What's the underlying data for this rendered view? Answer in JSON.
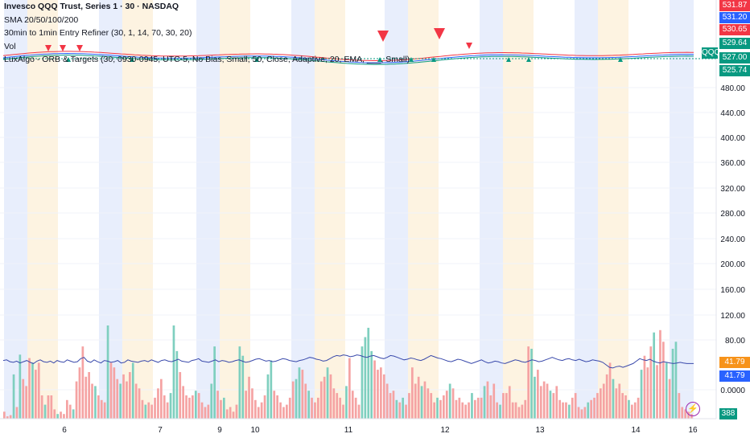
{
  "chart_data": {
    "type": "line",
    "symbol": "QQQ",
    "legend": [
      "Invesco QQQ Trust, Series 1 · 30 · NASDAQ",
      "SMA 20/50/100/200",
      "30min to 1min Entry Refiner (30, 1, 14, 70, 30, 20)",
      "Vol",
      "LuxAlgo - ORB & Targets (30, 0930-0945, UTC-5, No Bias, Small, 50, Close, Adaptive, 20, EMA, ___, Small)"
    ],
    "y_ticks": [
      "480.00",
      "440.00",
      "400.00",
      "360.00",
      "320.00",
      "280.00",
      "240.00",
      "200.00",
      "160.00",
      "120.00",
      "80.00",
      "0.0000"
    ],
    "x_ticks": [
      "6",
      "7",
      "9",
      "10",
      "11",
      "12",
      "13",
      "14",
      "16"
    ],
    "price_badges": [
      {
        "label": "531.87",
        "color": "#f23645"
      },
      {
        "label": "531.20",
        "color": "#2962ff"
      },
      {
        "label": "530.65",
        "color": "#f23645"
      },
      {
        "label": "529.64",
        "color": "#089981"
      },
      {
        "label": "527.00",
        "color": "#089981"
      },
      {
        "label": "525.74",
        "color": "#089981"
      }
    ],
    "indicator_badges": [
      {
        "label": "41.79",
        "color": "#f7931a"
      },
      {
        "label": "41.79",
        "color": "#2962ff"
      },
      {
        "label": "388",
        "color": "#089981"
      }
    ],
    "price_range": [
      525.74,
      531.87
    ],
    "oscillator_ylim": [
      0,
      120
    ],
    "oscillator_values": [
      47,
      48,
      45,
      44,
      46,
      43,
      45,
      47,
      44,
      42,
      46,
      48,
      45,
      44,
      46,
      43,
      47,
      45,
      44,
      48,
      46,
      44,
      45,
      50,
      52,
      46,
      44,
      48,
      45,
      43,
      47,
      46,
      44,
      45,
      47,
      43,
      44,
      48,
      46,
      45,
      44,
      46,
      47,
      45,
      48,
      46,
      44,
      47,
      48,
      46,
      45,
      47,
      49,
      46,
      45,
      44,
      47,
      48,
      50,
      46,
      45,
      44,
      46,
      48,
      45,
      47,
      46,
      44,
      45,
      47,
      48,
      46,
      44,
      45,
      47,
      49,
      50,
      48,
      46,
      47,
      45,
      46,
      48,
      50,
      49,
      47,
      46,
      45,
      47,
      48,
      50,
      52,
      51,
      49,
      48,
      46,
      47,
      50,
      53,
      55,
      54,
      56,
      55,
      53,
      54,
      56,
      55,
      53,
      52,
      54,
      55,
      53,
      51,
      50,
      52,
      55,
      54,
      52,
      50,
      48,
      49,
      51,
      50,
      48,
      47,
      49,
      52,
      55,
      53,
      51,
      50,
      48,
      46,
      45,
      47,
      49,
      48,
      46,
      44,
      42,
      44,
      46,
      48,
      45,
      43,
      44,
      46,
      45,
      43,
      42,
      44,
      46,
      48,
      47,
      45,
      44,
      46,
      48,
      47,
      45,
      46,
      48,
      50,
      52,
      50,
      48,
      47,
      49,
      50,
      48,
      47,
      49,
      47,
      45,
      46,
      48,
      47,
      46,
      44,
      40,
      36,
      35,
      37,
      38,
      36,
      38,
      40,
      42,
      46,
      50,
      48,
      47,
      49,
      46,
      44,
      43,
      45,
      44,
      43,
      42,
      43,
      44,
      43,
      42,
      42,
      42
    ],
    "volume_values": [
      6,
      2,
      3,
      38,
      10,
      55,
      34,
      28,
      52,
      48,
      42,
      48,
      20,
      12,
      20,
      20,
      8,
      4,
      6,
      4,
      16,
      12,
      8,
      32,
      44,
      62,
      36,
      40,
      30,
      28,
      20,
      16,
      14,
      80,
      48,
      44,
      34,
      30,
      38,
      32,
      40,
      48,
      30,
      26,
      16,
      12,
      14,
      12,
      18,
      26,
      34,
      20,
      14,
      22,
      80,
      58,
      40,
      28,
      20,
      18,
      20,
      24,
      22,
      14,
      10,
      12,
      30,
      62,
      24,
      16,
      18,
      8,
      10,
      6,
      12,
      62,
      54,
      24,
      36,
      26,
      16,
      10,
      14,
      20,
      38,
      50,
      24,
      20,
      14,
      10,
      12,
      18,
      32,
      34,
      44,
      42,
      30,
      24,
      18,
      14,
      18,
      32,
      36,
      44,
      38,
      26,
      22,
      18,
      12,
      28,
      52,
      24,
      18,
      12,
      62,
      70,
      78,
      58,
      50,
      42,
      44,
      38,
      30,
      22,
      24,
      16,
      14,
      18,
      12,
      22,
      44,
      30,
      36,
      28,
      32,
      26,
      22,
      14,
      18,
      16,
      20,
      24,
      30,
      26,
      16,
      18,
      14,
      12,
      14,
      22,
      16,
      18,
      18,
      28,
      32,
      20,
      30,
      14,
      12,
      22,
      22,
      28,
      14,
      14,
      10,
      12,
      16,
      62,
      60,
      36,
      42,
      28,
      32,
      30,
      24,
      22,
      28,
      16,
      14,
      14,
      12,
      18,
      22,
      10,
      8,
      10,
      14,
      16,
      18,
      22,
      26,
      30,
      38,
      48,
      34,
      26,
      30,
      22,
      20,
      16,
      12,
      14,
      18,
      42,
      54,
      44,
      62,
      74,
      46,
      76,
      66,
      48,
      34,
      60,
      66,
      22,
      10,
      8,
      6,
      4
    ],
    "up_bar_indices": [
      3,
      5,
      9,
      13,
      17,
      22,
      29,
      33,
      37,
      41,
      45,
      53,
      54,
      55,
      61,
      66,
      67,
      70,
      75,
      76,
      84,
      85,
      93,
      94,
      97,
      103,
      109,
      114,
      115,
      116,
      117,
      125,
      127,
      133,
      138,
      142,
      149,
      153,
      158,
      168,
      169,
      174,
      180,
      186,
      194,
      199,
      203,
      207,
      211,
      213,
      214
    ]
  }
}
